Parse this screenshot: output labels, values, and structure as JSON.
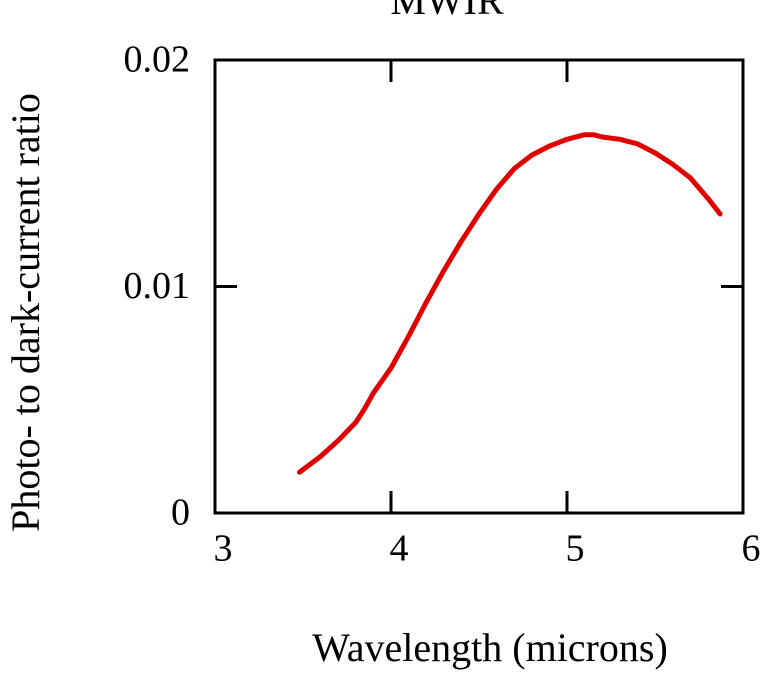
{
  "chart_data": {
    "type": "line",
    "title": "MWIR",
    "xlabel": "Wavelength (microns)",
    "ylabel": "Photo- to dark-current ratio",
    "xlim": [
      3,
      6
    ],
    "ylim": [
      0,
      0.02
    ],
    "xticks": [
      3,
      4,
      5,
      6
    ],
    "xtick_labels": [
      "3",
      "4",
      "5",
      "6"
    ],
    "yticks": [
      0,
      0.01,
      0.02
    ],
    "ytick_labels": [
      "0",
      "0.01",
      "0.02"
    ],
    "grid": false,
    "series": [
      {
        "color": "#e00000",
        "x": [
          3.48,
          3.6,
          3.7,
          3.8,
          3.85,
          3.9,
          4.0,
          4.1,
          4.2,
          4.3,
          4.4,
          4.5,
          4.6,
          4.7,
          4.8,
          4.9,
          5.0,
          5.1,
          5.15,
          5.2,
          5.3,
          5.4,
          5.5,
          5.6,
          5.7,
          5.8,
          5.87
        ],
        "y": [
          0.0018,
          0.0025,
          0.0032,
          0.004,
          0.0046,
          0.0053,
          0.0064,
          0.0078,
          0.0093,
          0.0107,
          0.012,
          0.0132,
          0.0143,
          0.0152,
          0.0158,
          0.0162,
          0.0165,
          0.0167,
          0.0167,
          0.0166,
          0.0165,
          0.0163,
          0.0159,
          0.0154,
          0.0148,
          0.0139,
          0.0132
        ]
      }
    ]
  }
}
